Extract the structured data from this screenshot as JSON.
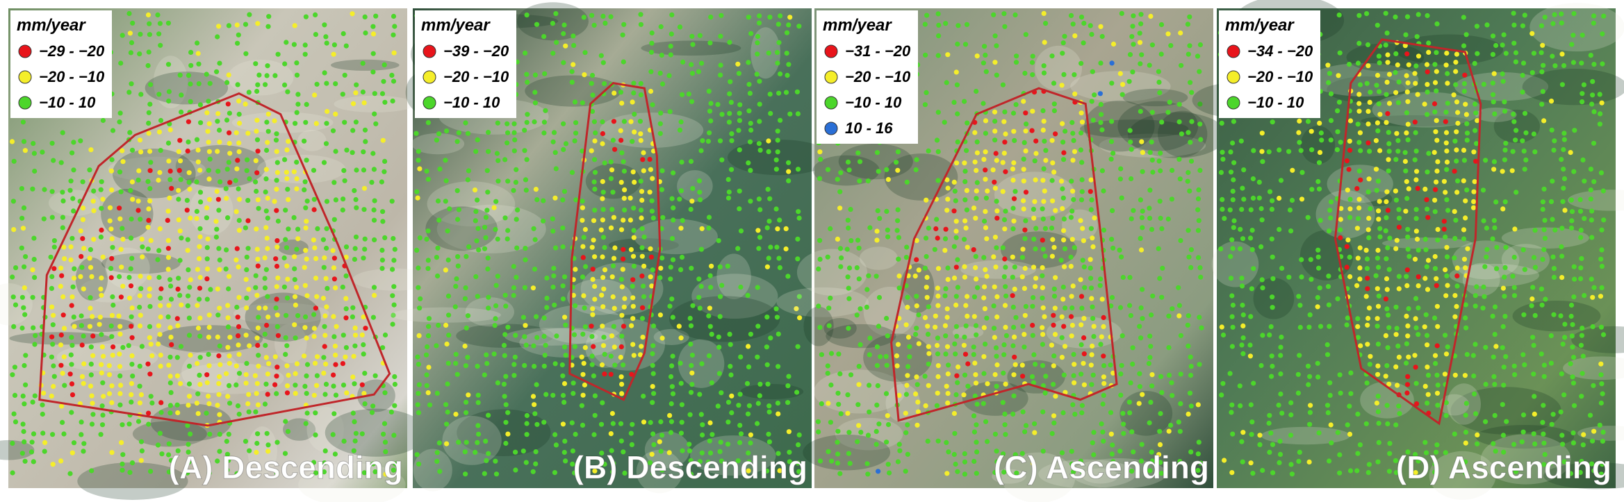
{
  "panels": [
    {
      "label": "(A) Descending",
      "legend": {
        "title": "mm/year",
        "items": [
          {
            "label": "−29 - −20",
            "color": "#e8141b"
          },
          {
            "label": "−20 - −10",
            "color": "#f5ee2a"
          },
          {
            "label": "−10 - 10",
            "color": "#4cd62b"
          }
        ]
      }
    },
    {
      "label": "(B) Descending",
      "legend": {
        "title": "mm/year",
        "items": [
          {
            "label": "−39 - −20",
            "color": "#e8141b"
          },
          {
            "label": "−20 - −10",
            "color": "#f5ee2a"
          },
          {
            "label": "−10 - 10",
            "color": "#4cd62b"
          }
        ]
      }
    },
    {
      "label": "(C) Ascending",
      "legend": {
        "title": "mm/year",
        "items": [
          {
            "label": "−31 - −20",
            "color": "#e8141b"
          },
          {
            "label": "−20 - −10",
            "color": "#f5ee2a"
          },
          {
            "label": "−10 - 10",
            "color": "#4cd62b"
          },
          {
            "label": "10 - 16",
            "color": "#2a6fd6"
          }
        ]
      }
    },
    {
      "label": "(D) Ascending",
      "legend": {
        "title": "mm/year",
        "items": [
          {
            "label": "−34 - −20",
            "color": "#e8141b"
          },
          {
            "label": "−20 - −10",
            "color": "#f5ee2a"
          },
          {
            "label": "−10 - 10",
            "color": "#4cd62b"
          }
        ]
      }
    }
  ]
}
